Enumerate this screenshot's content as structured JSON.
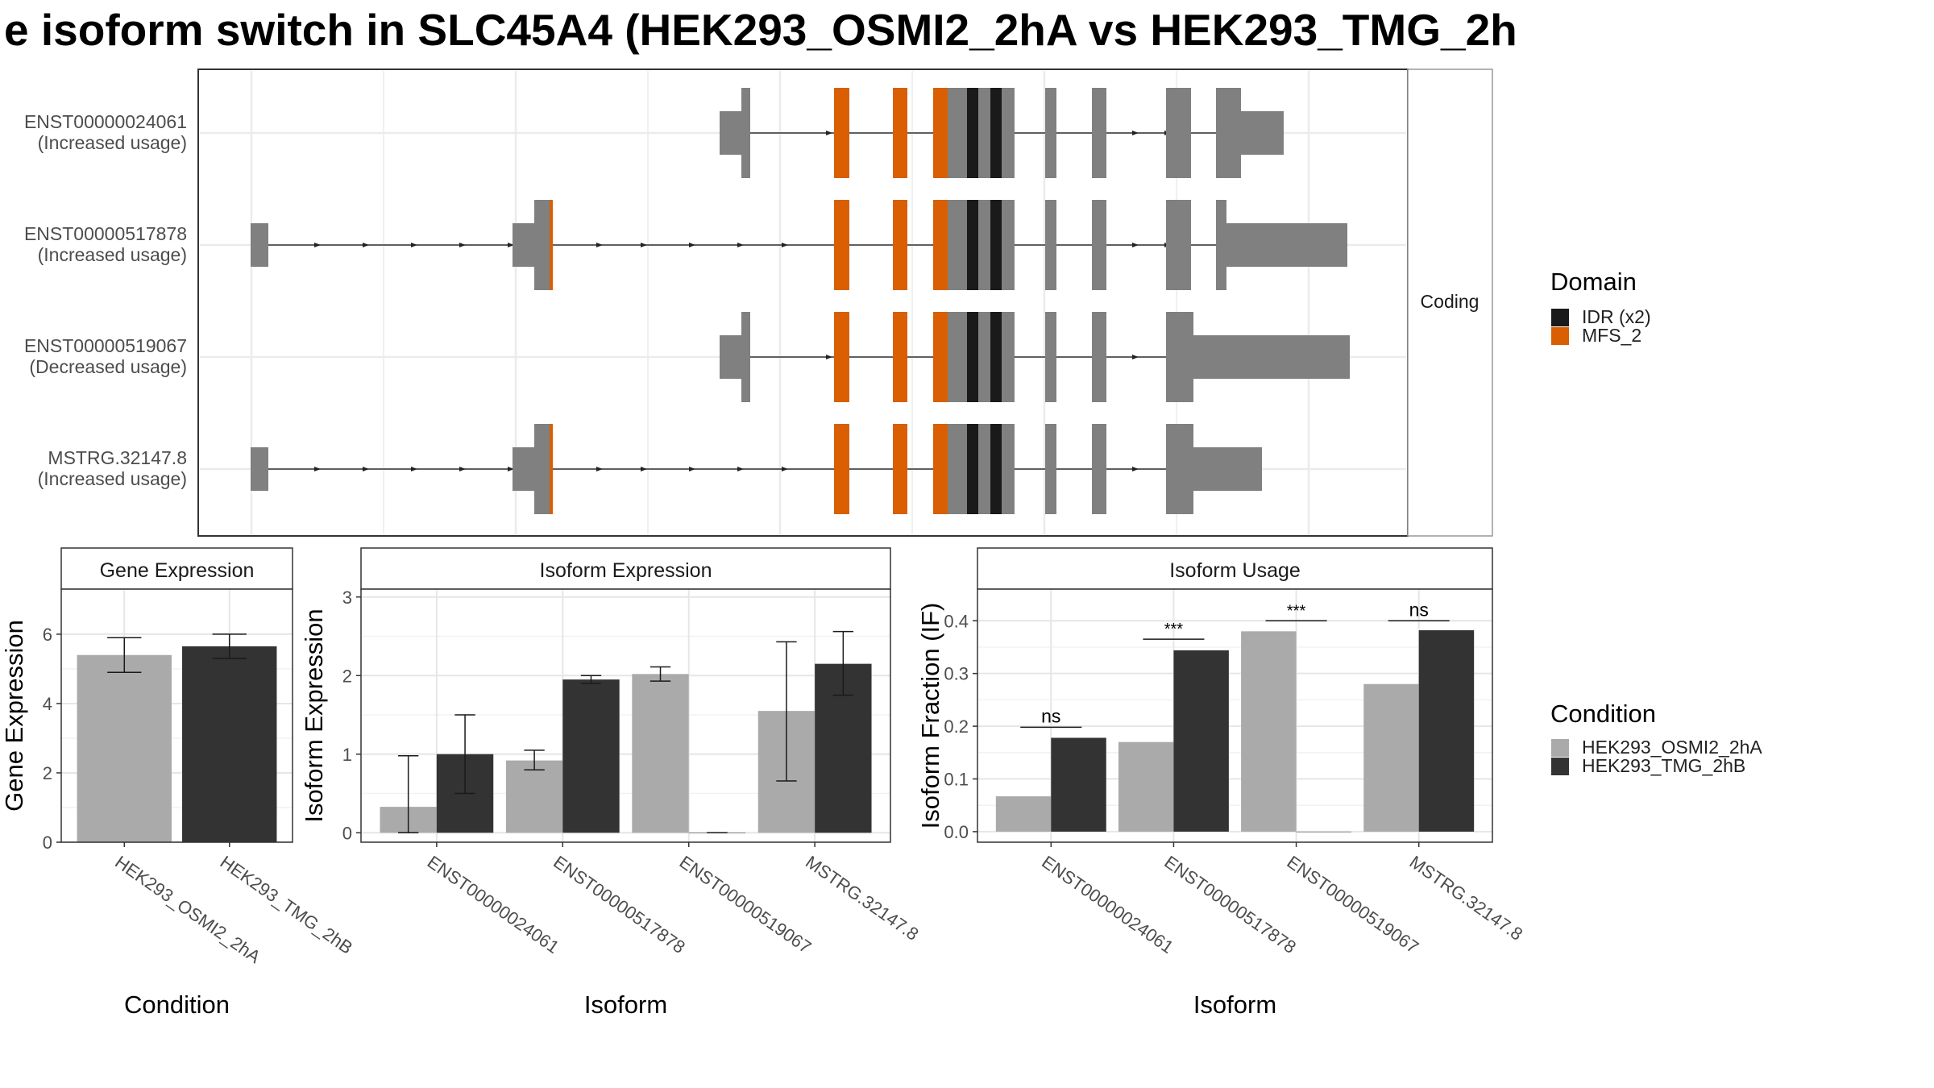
{
  "title": "e isoform switch in SLC45A4 (HEK293_OSMI2_2hA vs HEK293_TMG_2h",
  "colors": {
    "exon": "#808080",
    "idr": "#1a1a1a",
    "mfs": "#d95f02",
    "cond_a": "#aaaaaa",
    "cond_b": "#333333"
  },
  "structure": {
    "facet_label": "Coding",
    "isoforms": [
      {
        "id": "ENST00000024061",
        "status": "(Increased usage)"
      },
      {
        "id": "ENST00000517878",
        "status": "(Increased usage)"
      },
      {
        "id": "ENST00000519067",
        "status": "(Decreased usage)"
      },
      {
        "id": "MSTRG.32147.8",
        "status": "(Increased usage)"
      }
    ]
  },
  "legend_domain": {
    "title": "Domain",
    "items": [
      {
        "label": "IDR (x2)",
        "color": "#1a1a1a"
      },
      {
        "label": "MFS_2",
        "color": "#d95f02"
      }
    ]
  },
  "legend_condition": {
    "title": "Condition",
    "items": [
      {
        "label": "HEK293_OSMI2_2hA",
        "color": "#aaaaaa"
      },
      {
        "label": "HEK293_TMG_2hB",
        "color": "#333333"
      }
    ]
  },
  "chart_data": [
    {
      "type": "bar",
      "title": "Gene Expression",
      "xlabel": "Condition",
      "ylabel": "Gene Expression",
      "ylim": [
        0,
        7.3
      ],
      "yticks": [
        0,
        2,
        4,
        6
      ],
      "categories": [
        "HEK293_OSMI2_2hA",
        "HEK293_TMG_2hB"
      ],
      "values": [
        5.4,
        5.65
      ],
      "err_low": [
        4.9,
        5.3
      ],
      "err_high": [
        5.9,
        6.0
      ]
    },
    {
      "type": "bar",
      "title": "Isoform Expression",
      "xlabel": "Isoform",
      "ylabel": "Isoform Expression",
      "ylim": [
        -0.12,
        3.1
      ],
      "yticks": [
        0,
        1,
        2,
        3
      ],
      "categories": [
        "ENST00000024061",
        "ENST00000517878",
        "ENST00000519067",
        "MSTRG.32147.8"
      ],
      "series": [
        {
          "name": "HEK293_OSMI2_2hA",
          "values": [
            0.33,
            0.92,
            2.02,
            1.55
          ],
          "err_low": [
            0.0,
            0.8,
            1.93,
            0.66
          ],
          "err_high": [
            0.98,
            1.05,
            2.11,
            2.43
          ]
        },
        {
          "name": "HEK293_TMG_2hB",
          "values": [
            1.0,
            1.95,
            0.0,
            2.15
          ],
          "err_low": [
            0.5,
            1.9,
            0.0,
            1.75
          ],
          "err_high": [
            1.5,
            2.0,
            0.0,
            2.56
          ]
        }
      ]
    },
    {
      "type": "bar",
      "title": "Isoform Usage",
      "xlabel": "Isoform",
      "ylabel": "Isoform Fraction (IF)",
      "ylim": [
        -0.02,
        0.46
      ],
      "yticks": [
        0.0,
        0.1,
        0.2,
        0.3,
        0.4
      ],
      "ytick_labels": [
        "0.0",
        "0.1",
        "0.2",
        "0.3",
        "0.4"
      ],
      "categories": [
        "ENST00000024061",
        "ENST00000517878",
        "ENST00000519067",
        "MSTRG.32147.8"
      ],
      "series": [
        {
          "name": "HEK293_OSMI2_2hA",
          "values": [
            0.067,
            0.17,
            0.38,
            0.28
          ]
        },
        {
          "name": "HEK293_TMG_2hB",
          "values": [
            0.178,
            0.344,
            0.0,
            0.382
          ]
        }
      ],
      "annotations": [
        {
          "label": "ns",
          "y": 0.198
        },
        {
          "label": "***",
          "y": 0.365
        },
        {
          "label": "***",
          "y": 0.4
        },
        {
          "label": "ns",
          "y": 0.4
        }
      ]
    }
  ]
}
